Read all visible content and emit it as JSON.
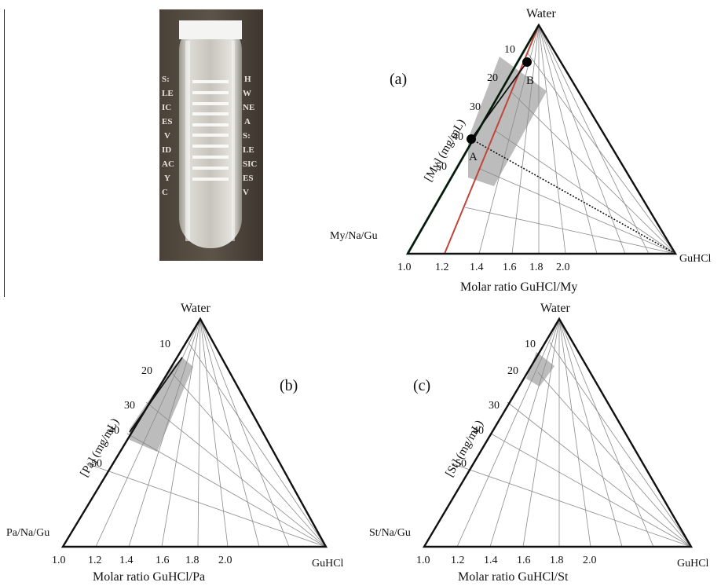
{
  "photo": {
    "name": "test-tube-photo"
  },
  "colors": {
    "outline": "#111111",
    "grid": "#8a8a8a",
    "shade": "#a6a6a6",
    "green_line": "#2a9d4b",
    "red_line": "#c0453a"
  },
  "panels": {
    "a": {
      "tag": "(a)",
      "apex_label": "Water",
      "left_label": "My/Na/Gu",
      "right_label": "GuHCl",
      "axis_label": "[My] (mg/mL)",
      "bottom_label": "Molar ratio GuHCl/My",
      "conc_ticks": [
        "10",
        "20",
        "30",
        "40",
        "50"
      ],
      "ratio_ticks": [
        "1.0",
        "1.2",
        "1.4",
        "1.6",
        "1.8",
        "2.0"
      ],
      "point_a": "A",
      "point_b": "B"
    },
    "b": {
      "tag": "(b)",
      "apex_label": "Water",
      "left_label": "Pa/Na/Gu",
      "right_label": "GuHCl",
      "axis_label": "[Pa] (mg/mL)",
      "bottom_label": "Molar ratio GuHCl/Pa",
      "conc_ticks": [
        "10",
        "20",
        "30",
        "40",
        "50"
      ],
      "ratio_ticks": [
        "1.0",
        "1.2",
        "1.4",
        "1.6",
        "1.8",
        "2.0"
      ]
    },
    "c": {
      "tag": "(c)",
      "apex_label": "Water",
      "left_label": "St/Na/Gu",
      "right_label": "GuHCl",
      "axis_label": "[St] (mg/mL)",
      "bottom_label": "Molar ratio GuHCl/St",
      "conc_ticks": [
        "10",
        "20",
        "30",
        "40",
        "50"
      ],
      "ratio_ticks": [
        "1.0",
        "1.2",
        "1.4",
        "1.6",
        "1.8",
        "2.0"
      ]
    }
  }
}
